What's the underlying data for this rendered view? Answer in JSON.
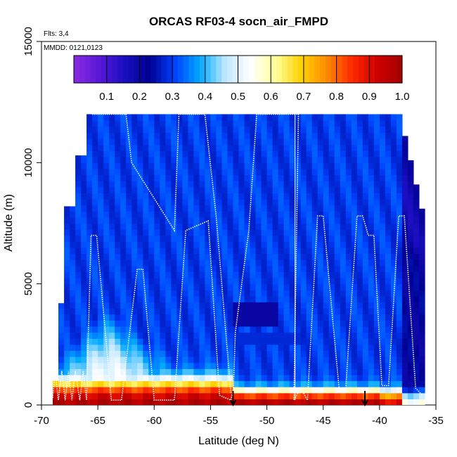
{
  "chart_data": {
    "type": "heatmap",
    "title": "ORCAS RF03-4 socn_air_FMPD",
    "xlabel": "Latitude (deg N)",
    "ylabel": "Altitude (m)",
    "xlim": [
      -70,
      -35
    ],
    "ylim": [
      0,
      15000
    ],
    "xticks": [
      -70,
      -65,
      -60,
      -55,
      -50,
      -45,
      -40,
      -35
    ],
    "yticks": [
      0,
      5000,
      10000,
      15000
    ],
    "annotations": [
      "Flts: 3,4",
      "MMDD: 0121,0123"
    ],
    "colorbar": {
      "ticks": [
        0.1,
        0.2,
        0.3,
        0.4,
        0.5,
        0.6,
        0.7,
        0.8,
        0.9,
        1.0
      ],
      "tick_labels": [
        "0.1",
        "0.2",
        "0.3",
        "0.4",
        "0.5",
        "0.6",
        "0.7",
        "0.8",
        "0.9",
        "1.0"
      ],
      "range": [
        0,
        1
      ],
      "colors": [
        "#8a2be2",
        "#5a18d8",
        "#1a0fc0",
        "#000090",
        "#0040ff",
        "#00aaff",
        "#bfe8ff",
        "#ffffff",
        "#ffff9a",
        "#ffd200",
        "#ff8c00",
        "#ff2a00",
        "#d00000",
        "#a00000"
      ]
    },
    "flight_track_color": "#ffffff",
    "arrows": [
      {
        "lat": -53,
        "alt": 0
      },
      {
        "lat": -41.3,
        "alt": 0
      }
    ],
    "grid": false
  }
}
